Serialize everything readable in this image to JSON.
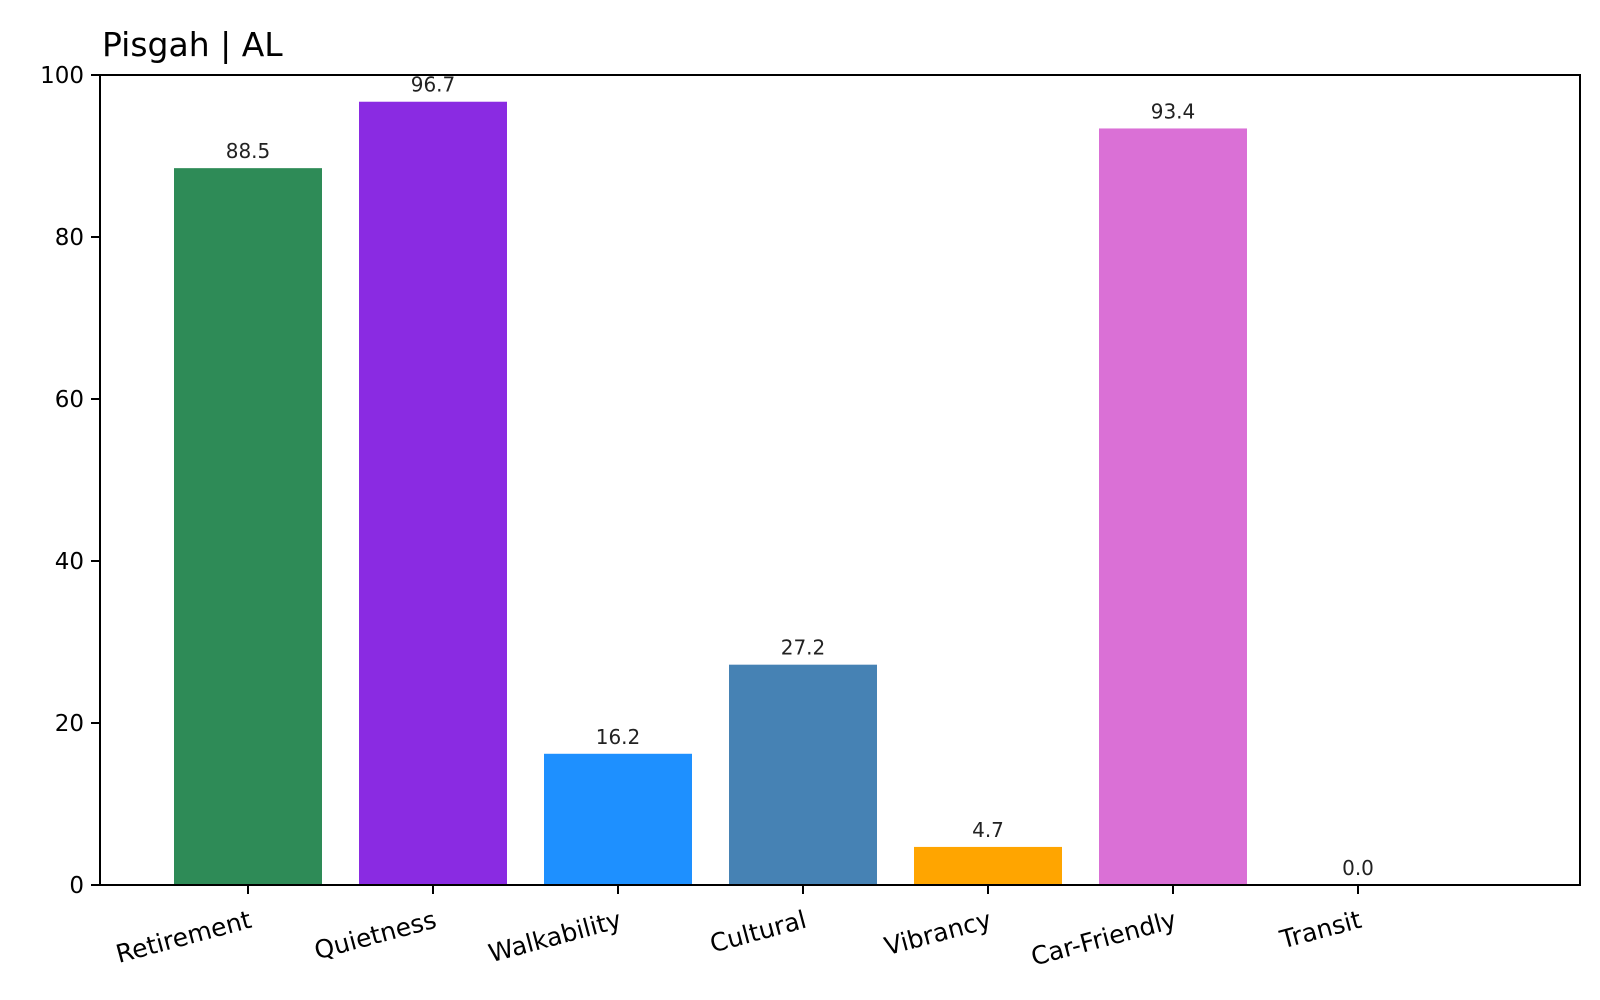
{
  "chart_data": {
    "type": "bar",
    "title": "Pisgah | AL",
    "xlabel": "",
    "ylabel": "",
    "categories": [
      "Retirement",
      "Quietness",
      "Walkability",
      "Cultural",
      "Vibrancy",
      "Car-Friendly",
      "Transit"
    ],
    "values": [
      88.5,
      96.7,
      16.2,
      27.2,
      4.7,
      93.4,
      0.0
    ],
    "value_labels": [
      "88.5",
      "96.7",
      "16.2",
      "27.2",
      "4.7",
      "93.4",
      "0.0"
    ],
    "colors": [
      "#2e8b57",
      "#8a2be2",
      "#1e90ff",
      "#4682b4",
      "#ffa500",
      "#da70d6",
      "#dc143c"
    ],
    "ylim": [
      0,
      100
    ],
    "yticks": [
      0,
      20,
      40,
      60,
      80,
      100
    ],
    "ytick_labels": [
      "0",
      "20",
      "40",
      "60",
      "80",
      "100"
    ],
    "grid": false,
    "legend": "none"
  }
}
